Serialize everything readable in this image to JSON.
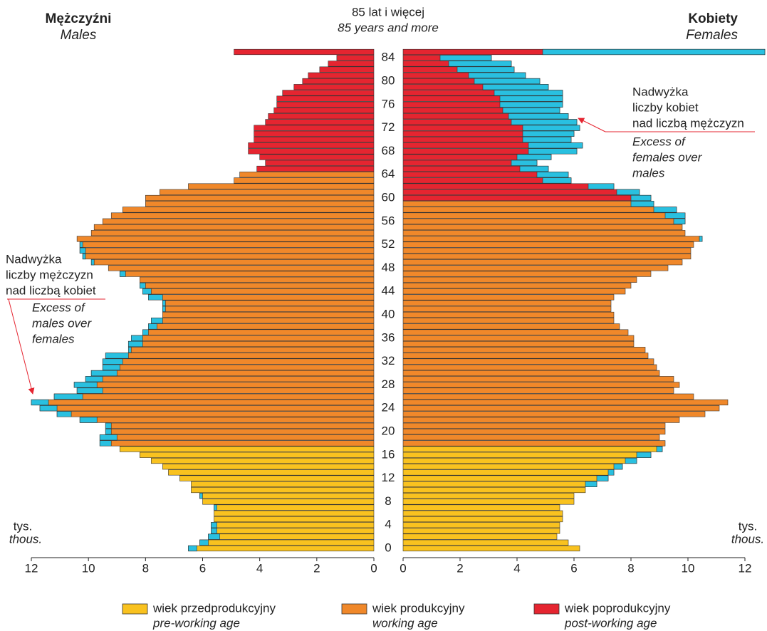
{
  "chart_data": {
    "type": "population-pyramid",
    "categories": [
      0,
      null,
      null,
      null,
      4,
      null,
      null,
      null,
      8,
      null,
      null,
      null,
      12,
      null,
      null,
      null,
      16,
      null,
      null,
      null,
      20,
      null,
      null,
      null,
      24,
      null,
      null,
      null,
      28,
      null,
      null,
      null,
      32,
      null,
      null,
      null,
      36,
      null,
      null,
      null,
      40,
      null,
      null,
      null,
      44,
      null,
      null,
      null,
      48,
      null,
      null,
      null,
      52,
      null,
      null,
      null,
      56,
      null,
      null,
      null,
      60,
      null,
      null,
      null,
      64,
      null,
      null,
      null,
      68,
      null,
      null,
      null,
      72,
      null,
      null,
      null,
      76,
      null,
      null,
      null,
      80,
      null,
      null,
      null,
      84,
      null
    ],
    "open_age_label": [
      "85 lat i więcej",
      "85 years and more"
    ],
    "series": [
      {
        "name": "Mężczyźni",
        "name_en": "Males",
        "side": "left",
        "values": [
          6.5,
          6.1,
          5.8,
          5.7,
          5.7,
          5.6,
          5.6,
          5.6,
          6.0,
          6.1,
          6.4,
          6.4,
          6.8,
          7.2,
          7.4,
          7.8,
          8.2,
          8.9,
          9.6,
          9.6,
          9.4,
          9.4,
          10.3,
          11.1,
          11.7,
          12.0,
          11.2,
          10.4,
          10.5,
          10.1,
          9.9,
          9.5,
          9.5,
          9.4,
          8.6,
          8.6,
          8.5,
          8.1,
          7.9,
          7.8,
          7.4,
          7.4,
          7.4,
          7.9,
          8.1,
          8.2,
          8.2,
          8.9,
          9.3,
          9.9,
          10.2,
          10.3,
          10.3,
          10.4,
          9.9,
          9.8,
          9.5,
          9.2,
          8.8,
          8.0,
          8.0,
          7.5,
          6.5,
          4.9,
          4.7,
          4.1,
          3.8,
          4.0,
          4.4,
          4.4,
          4.2,
          4.2,
          4.2,
          3.8,
          3.7,
          3.5,
          3.4,
          3.4,
          3.2,
          2.8,
          2.5,
          2.3,
          1.9,
          1.6,
          1.3,
          4.9
        ],
        "colors": [
          "#f9c21f",
          "#f9c21f",
          "#f9c21f",
          "#f9c21f",
          "#f9c21f",
          "#f9c21f",
          "#f9c21f",
          "#f9c21f",
          "#f9c21f",
          "#f9c21f",
          "#f9c21f",
          "#f9c21f",
          "#f9c21f",
          "#f9c21f",
          "#f9c21f",
          "#f9c21f",
          "#f9c21f",
          "#f9c21f",
          "#f0882a",
          "#f0882a",
          "#f0882a",
          "#f0882a",
          "#f0882a",
          "#f0882a",
          "#f0882a",
          "#f0882a",
          "#f0882a",
          "#f0882a",
          "#f0882a",
          "#f0882a",
          "#f0882a",
          "#f0882a",
          "#f0882a",
          "#f0882a",
          "#f0882a",
          "#f0882a",
          "#f0882a",
          "#f0882a",
          "#f0882a",
          "#f0882a",
          "#f0882a",
          "#f0882a",
          "#f0882a",
          "#f0882a",
          "#f0882a",
          "#f0882a",
          "#f0882a",
          "#f0882a",
          "#f0882a",
          "#f0882a",
          "#f0882a",
          "#f0882a",
          "#f0882a",
          "#f0882a",
          "#f0882a",
          "#f0882a",
          "#f0882a",
          "#f0882a",
          "#f0882a",
          "#f0882a",
          "#f0882a",
          "#f0882a",
          "#f0882a",
          "#f0882a",
          "#f0882a",
          "#e52530",
          "#e52530",
          "#e52530",
          "#e52530",
          "#e52530",
          "#e52530",
          "#e52530",
          "#e52530",
          "#e52530",
          "#e52530",
          "#e52530",
          "#e52530",
          "#e52530",
          "#e52530",
          "#e52530",
          "#e52530",
          "#e52530",
          "#e52530",
          "#e52530",
          "#e52530",
          "#e52530"
        ]
      },
      {
        "name": "Kobiety",
        "name_en": "Females",
        "side": "right",
        "values": [
          6.2,
          5.8,
          5.4,
          5.5,
          5.5,
          5.6,
          5.6,
          5.5,
          6.0,
          6.0,
          6.4,
          6.8,
          7.2,
          7.4,
          7.7,
          8.2,
          8.7,
          9.1,
          9.2,
          9.0,
          9.2,
          9.2,
          9.7,
          10.6,
          11.1,
          11.4,
          10.2,
          9.5,
          9.7,
          9.5,
          9.0,
          8.9,
          8.8,
          8.6,
          8.5,
          8.1,
          8.1,
          7.9,
          7.6,
          7.4,
          7.4,
          7.3,
          7.3,
          7.4,
          7.8,
          8.0,
          8.2,
          8.7,
          9.3,
          9.8,
          10.1,
          10.1,
          10.2,
          10.5,
          9.9,
          9.8,
          9.9,
          9.9,
          9.6,
          8.8,
          8.7,
          8.3,
          7.4,
          5.9,
          5.8,
          5.1,
          4.7,
          5.2,
          6.1,
          6.3,
          5.9,
          6.0,
          6.2,
          6.1,
          5.8,
          5.5,
          5.6,
          5.6,
          5.6,
          5.1,
          4.8,
          4.3,
          3.9,
          3.8,
          3.1,
          12.7
        ],
        "colors": [
          "#f9c21f",
          "#f9c21f",
          "#f9c21f",
          "#f9c21f",
          "#f9c21f",
          "#f9c21f",
          "#f9c21f",
          "#f9c21f",
          "#f9c21f",
          "#f9c21f",
          "#f9c21f",
          "#f9c21f",
          "#f9c21f",
          "#f9c21f",
          "#f9c21f",
          "#f9c21f",
          "#f9c21f",
          "#f9c21f",
          "#f0882a",
          "#f0882a",
          "#f0882a",
          "#f0882a",
          "#f0882a",
          "#f0882a",
          "#f0882a",
          "#f0882a",
          "#f0882a",
          "#f0882a",
          "#f0882a",
          "#f0882a",
          "#f0882a",
          "#f0882a",
          "#f0882a",
          "#f0882a",
          "#f0882a",
          "#f0882a",
          "#f0882a",
          "#f0882a",
          "#f0882a",
          "#f0882a",
          "#f0882a",
          "#f0882a",
          "#f0882a",
          "#f0882a",
          "#f0882a",
          "#f0882a",
          "#f0882a",
          "#f0882a",
          "#f0882a",
          "#f0882a",
          "#f0882a",
          "#f0882a",
          "#f0882a",
          "#f0882a",
          "#f0882a",
          "#f0882a",
          "#f0882a",
          "#f0882a",
          "#f0882a",
          "#f0882a",
          "#e52530",
          "#e52530",
          "#e52530",
          "#e52530",
          "#e52530",
          "#e52530",
          "#e52530",
          "#e52530",
          "#e52530",
          "#e52530",
          "#e52530",
          "#e52530",
          "#e52530",
          "#e52530",
          "#e52530",
          "#e52530",
          "#e52530",
          "#e52530",
          "#e52530",
          "#e52530",
          "#e52530",
          "#e52530",
          "#e52530",
          "#e52530",
          "#e52530",
          "#e52530"
        ]
      }
    ],
    "excess_color": "#29c0e0",
    "xlim": [
      0,
      12
    ],
    "xticks": [
      0,
      2,
      4,
      6,
      8,
      10,
      12
    ],
    "unit_label": [
      "tys.",
      "thous."
    ],
    "legend": [
      {
        "label": "wiek przedprodukcyjny",
        "label_en": "pre-working age",
        "color": "#f9c21f"
      },
      {
        "label": "wiek produkcyjny",
        "label_en": "working age",
        "color": "#f0882a"
      },
      {
        "label": "wiek poprodukcyjny",
        "label_en": "post-working age",
        "color": "#e52530"
      }
    ],
    "annotations": [
      {
        "text": [
          "Nadwyżka",
          "liczby kobiet",
          "nad liczbą mężczyzn"
        ],
        "text_en": [
          "Excess of",
          "females over",
          "males"
        ]
      },
      {
        "text": [
          "Nadwyżka",
          "liczby mężczyzn",
          "nad liczbą kobiet"
        ],
        "text_en": [
          "Excess of",
          "males over",
          "females"
        ]
      }
    ]
  }
}
